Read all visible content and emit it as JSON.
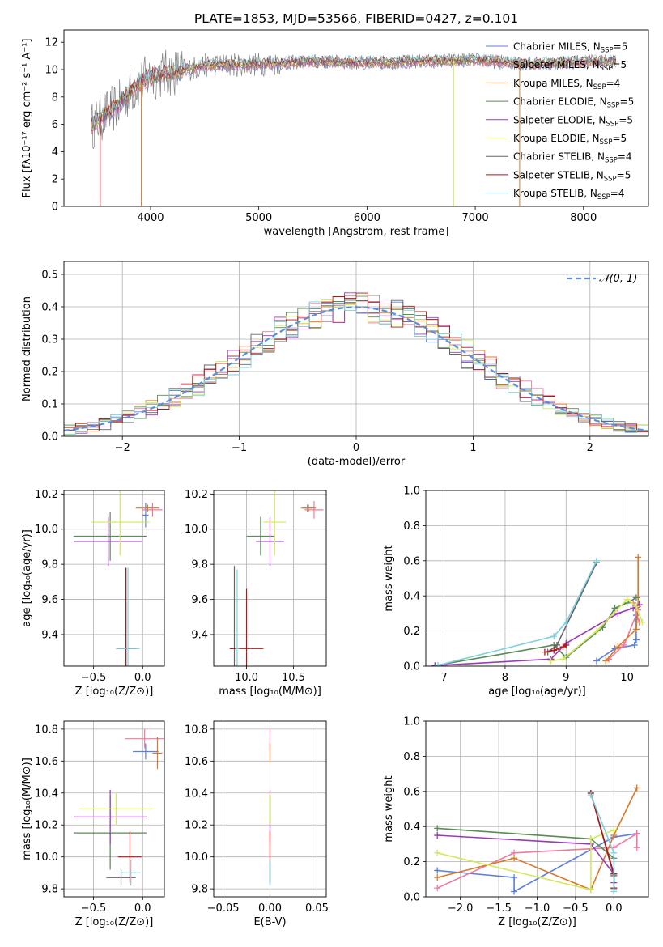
{
  "palette": [
    "#5b7fdc",
    "#f07a9c",
    "#d97a2a",
    "#5a8a55",
    "#9a3bb5",
    "#d2ea5a",
    "#666666",
    "#b01818",
    "#7ed0de"
  ],
  "grid_color": "#b0b0b0",
  "chart_data": [
    {
      "id": "spectrum",
      "type": "line",
      "title": "PLATE=1853, MJD=53566, FIBERID=0427, z=0.101",
      "xlabel": "wavelength [Angstrom, rest frame]",
      "ylabel": "Flux [fλ10⁻¹⁷ erg cm⁻² s⁻¹ A⁻¹]",
      "xlim": [
        3200,
        8600
      ],
      "ylim": [
        0,
        12.9
      ],
      "xticks": [
        4000,
        5000,
        6000,
        7000,
        8000
      ],
      "yticks": [
        0,
        2,
        4,
        6,
        8,
        10,
        12
      ],
      "grid": false,
      "legend_position": "right",
      "data_line": {
        "color": "#808080",
        "x_start": 3450,
        "x_end": 8300
      },
      "continuum": {
        "x": [
          3450,
          3500,
          3600,
          3700,
          3800,
          3900,
          4000,
          4200,
          4500,
          5000,
          5500,
          6000,
          6500,
          7000,
          7500,
          8000,
          8300
        ],
        "y": [
          5.8,
          6.2,
          6.8,
          7.4,
          8.3,
          9.0,
          9.5,
          9.8,
          10.3,
          10.4,
          10.6,
          10.5,
          10.6,
          10.7,
          10.4,
          10.6,
          10.6
        ]
      },
      "spikes": [
        {
          "x": 3535,
          "series": 7
        },
        {
          "x": 3915,
          "series": 2
        },
        {
          "x": 6800,
          "series": 5
        },
        {
          "x": 7410,
          "series": 2
        }
      ],
      "series": [
        {
          "name": "Chabrier MILES, N",
          "sub": "SSP",
          "tail": "=5"
        },
        {
          "name": "Salpeter MILES, N",
          "sub": "SSP",
          "tail": "=5"
        },
        {
          "name": "Kroupa MILES, N",
          "sub": "SSP",
          "tail": "=4"
        },
        {
          "name": "Chabrier ELODIE, N",
          "sub": "SSP",
          "tail": "=5"
        },
        {
          "name": "Salpeter ELODIE, N",
          "sub": "SSP",
          "tail": "=5"
        },
        {
          "name": "Kroupa ELODIE, N",
          "sub": "SSP",
          "tail": "=5"
        },
        {
          "name": "Chabrier STELIB, N",
          "sub": "SSP",
          "tail": "=4"
        },
        {
          "name": "Salpeter STELIB, N",
          "sub": "SSP",
          "tail": "=5"
        },
        {
          "name": "Kroupa STELIB, N",
          "sub": "SSP",
          "tail": "=4"
        }
      ]
    },
    {
      "id": "residuals",
      "type": "line",
      "xlabel": "(data-model)/error",
      "ylabel": "Normed distribution",
      "xlim": [
        -2.5,
        2.5
      ],
      "ylim": [
        0,
        0.54
      ],
      "xticks": [
        -2,
        -1,
        0,
        1,
        2
      ],
      "xtick_labels": [
        "−2",
        "−1",
        "0",
        "1",
        "2"
      ],
      "yticks": [
        0.0,
        0.1,
        0.2,
        0.3,
        0.4,
        0.5
      ],
      "ytick_labels": [
        "0.0",
        "0.1",
        "0.2",
        "0.3",
        "0.4",
        "0.5"
      ],
      "grid": true,
      "legend": "𝒩(0, 1)",
      "legend_position": "top-right",
      "reference_color": "#5b8fd6",
      "bin_width": 0.1
    },
    {
      "id": "age-vs-Z",
      "type": "scatter",
      "xlabel": "Z [log₁₀(Z/Z⊙)]",
      "ylabel": "age  [log₁₀(age/yr)]",
      "xlim": [
        -0.8,
        0.22
      ],
      "ylim": [
        9.22,
        10.22
      ],
      "xticks": [
        -0.5,
        0.0
      ],
      "xtick_labels": [
        "−0.5",
        "0.0"
      ],
      "yticks": [
        9.4,
        9.6,
        9.8,
        10.0,
        10.2
      ],
      "ytick_labels": [
        "9.4",
        "9.6",
        "9.8",
        "10.0",
        "10.2"
      ],
      "grid": true,
      "points": [
        {
          "s": 0,
          "x": 0.03,
          "y": 10.08,
          "xe": 0.03,
          "ye": 0.07
        },
        {
          "s": 1,
          "x": 0.1,
          "y": 10.11,
          "xe": 0.1,
          "ye": 0.04
        },
        {
          "s": 2,
          "x": 0.05,
          "y": 10.12,
          "xe": 0.12,
          "ye": 0.02
        },
        {
          "s": 3,
          "x": -0.33,
          "y": 9.96,
          "xe": 0.37,
          "ye": 0.14
        },
        {
          "s": 4,
          "x": -0.35,
          "y": 9.93,
          "xe": 0.35,
          "ye": 0.14
        },
        {
          "s": 5,
          "x": -0.23,
          "y": 10.04,
          "xe": 0.3,
          "ye": 0.19
        },
        {
          "s": 6,
          "x": -0.17,
          "y": 9.32,
          "xe": 0.1,
          "ye": 0.46
        },
        {
          "s": 7,
          "x": -0.17,
          "y": 9.32,
          "xe": 0.1,
          "ye": 0.46
        },
        {
          "s": 8,
          "x": -0.15,
          "y": 9.32,
          "xe": 0.12,
          "ye": 0.46
        }
      ]
    },
    {
      "id": "age-vs-mass",
      "type": "scatter",
      "xlabel": "mass [log₁₀(M/M⊙)]",
      "xlim": [
        9.65,
        10.85
      ],
      "ylim": [
        9.22,
        10.22
      ],
      "xticks": [
        10.0,
        10.5
      ],
      "xtick_labels": [
        "10.0",
        "10.5"
      ],
      "yticks": [
        9.4,
        9.6,
        9.8,
        10.0,
        10.2
      ],
      "ytick_labels": [
        "9.4",
        "9.6",
        "9.8",
        "10.0",
        "10.2"
      ],
      "grid": true,
      "points": [
        {
          "s": 0,
          "x": 10.65,
          "y": 10.12,
          "xe": 0.05,
          "ye": 0.02
        },
        {
          "s": 1,
          "x": 10.72,
          "y": 10.11,
          "xe": 0.1,
          "ye": 0.05
        },
        {
          "s": 2,
          "x": 10.66,
          "y": 10.12,
          "xe": 0.08,
          "ye": 0.02
        },
        {
          "s": 3,
          "x": 10.15,
          "y": 9.96,
          "xe": 0.15,
          "ye": 0.11
        },
        {
          "s": 4,
          "x": 10.25,
          "y": 9.93,
          "xe": 0.15,
          "ye": 0.14
        },
        {
          "s": 5,
          "x": 10.3,
          "y": 10.04,
          "xe": 0.12,
          "ye": 0.19
        },
        {
          "s": 6,
          "x": 9.87,
          "y": 9.32,
          "xe": 0.05,
          "ye": 0.47
        },
        {
          "s": 7,
          "x": 10.0,
          "y": 9.32,
          "xe": 0.18,
          "ye": 0.34
        },
        {
          "s": 8,
          "x": 9.9,
          "y": 9.32,
          "xe": 0.02,
          "ye": 0.45
        }
      ]
    },
    {
      "id": "weight-vs-age",
      "type": "line",
      "xlabel": "age  [log₁₀(age/yr)]",
      "ylabel": "mass weight",
      "xlim": [
        6.7,
        10.35
      ],
      "ylim": [
        0,
        1.0
      ],
      "xticks": [
        7,
        8,
        9,
        10
      ],
      "xtick_labels": [
        "7",
        "8",
        "9",
        "10"
      ],
      "yticks": [
        0,
        0.2,
        0.4,
        0.6,
        0.8,
        1.0
      ],
      "ytick_labels": [
        "0.0",
        "0.2",
        "0.4",
        "0.6",
        "0.8",
        "1.0"
      ],
      "grid": true,
      "series": [
        {
          "s": 0,
          "x": [
            9.5,
            9.8,
            10.12,
            10.15,
            10.15
          ],
          "y": [
            0.03,
            0.1,
            0.12,
            0.15,
            0.29
          ]
        },
        {
          "s": 1,
          "x": [
            9.7,
            9.95,
            10.18,
            10.1,
            10.2
          ],
          "y": [
            0.04,
            0.12,
            0.32,
            0.36,
            0.25
          ]
        },
        {
          "s": 2,
          "x": [
            9.65,
            9.85,
            10.15,
            10.18,
            10.18
          ],
          "y": [
            0.03,
            0.11,
            0.21,
            0.34,
            0.62
          ]
        },
        {
          "s": 3,
          "x": [
            6.85,
            8.8,
            9.0,
            9.6,
            9.8,
            10.0,
            10.15
          ],
          "y": [
            0.003,
            0.12,
            0.05,
            0.22,
            0.33,
            0.36,
            0.39
          ]
        },
        {
          "s": 4,
          "x": [
            6.85,
            8.75,
            9.0,
            9.85,
            10.1,
            10.2
          ],
          "y": [
            0.003,
            0.04,
            0.13,
            0.3,
            0.33,
            0.35
          ]
        },
        {
          "s": 5,
          "x": [
            8.75,
            8.95,
            9.5,
            10.0,
            10.15,
            10.25
          ],
          "y": [
            0.03,
            0.04,
            0.2,
            0.38,
            0.34,
            0.25
          ]
        },
        {
          "s": 6,
          "x": [
            8.7,
            8.85,
            9.5
          ],
          "y": [
            0.08,
            0.12,
            0.59
          ]
        },
        {
          "s": 7,
          "x": [
            8.65,
            8.8,
            8.95,
            9.0
          ],
          "y": [
            0.08,
            0.09,
            0.11,
            0.12
          ]
        },
        {
          "s": 8,
          "x": [
            6.9,
            8.8,
            9.0,
            9.5
          ],
          "y": [
            0.005,
            0.17,
            0.25,
            0.6
          ]
        }
      ]
    },
    {
      "id": "mass-vs-Z",
      "type": "scatter",
      "xlabel": "Z [log₁₀(Z/Z⊙)]",
      "ylabel": "mass [log₁₀(M/M⊙)]",
      "xlim": [
        -0.8,
        0.22
      ],
      "ylim": [
        9.75,
        10.85
      ],
      "xticks": [
        -0.5,
        0.0
      ],
      "xtick_labels": [
        "−0.5",
        "0.0"
      ],
      "yticks": [
        9.8,
        10.0,
        10.2,
        10.4,
        10.6,
        10.8
      ],
      "ytick_labels": [
        "9.8",
        "10.0",
        "10.2",
        "10.4",
        "10.6",
        "10.8"
      ],
      "grid": true,
      "points": [
        {
          "s": 0,
          "x": 0.03,
          "y": 10.66,
          "xe": 0.13,
          "ye": 0.05
        },
        {
          "s": 1,
          "x": 0.02,
          "y": 10.74,
          "xe": 0.2,
          "ye": 0.06
        },
        {
          "s": 2,
          "x": 0.15,
          "y": 10.65,
          "xe": 0.05,
          "ye": 0.1
        },
        {
          "s": 3,
          "x": -0.33,
          "y": 10.15,
          "xe": 0.37,
          "ye": 0.23
        },
        {
          "s": 4,
          "x": -0.33,
          "y": 10.25,
          "xe": 0.37,
          "ye": 0.17
        },
        {
          "s": 5,
          "x": -0.27,
          "y": 10.3,
          "xe": 0.37,
          "ye": 0.1
        },
        {
          "s": 6,
          "x": -0.22,
          "y": 9.87,
          "xe": 0.15,
          "ye": 0.05
        },
        {
          "s": 7,
          "x": -0.13,
          "y": 10.0,
          "xe": 0.12,
          "ye": 0.16
        },
        {
          "s": 8,
          "x": -0.12,
          "y": 9.9,
          "xe": 0.1,
          "ye": 0.08
        }
      ]
    },
    {
      "id": "mass-vs-ebv",
      "type": "scatter",
      "xlabel": "E(B-V)",
      "xlim": [
        -0.06,
        0.06
      ],
      "ylim": [
        9.75,
        10.85
      ],
      "xticks": [
        -0.05,
        0.0,
        0.05
      ],
      "xtick_labels": [
        "−0.05",
        "0.00",
        "0.05"
      ],
      "yticks": [
        9.8,
        10.0,
        10.2,
        10.4,
        10.6,
        10.8
      ],
      "ytick_labels": [
        "9.8",
        "10.0",
        "10.2",
        "10.4",
        "10.6",
        "10.8"
      ],
      "grid": true,
      "points": [
        {
          "s": 0,
          "x": 0,
          "y": 10.66,
          "xe": 0,
          "ye": 0.05
        },
        {
          "s": 1,
          "x": 0,
          "y": 10.74,
          "xe": 0,
          "ye": 0.06
        },
        {
          "s": 2,
          "x": 0,
          "y": 10.65,
          "xe": 0,
          "ye": 0.06
        },
        {
          "s": 3,
          "x": 0,
          "y": 10.15,
          "xe": 0,
          "ye": 0.23
        },
        {
          "s": 4,
          "x": 0,
          "y": 10.25,
          "xe": 0,
          "ye": 0.17
        },
        {
          "s": 5,
          "x": 0,
          "y": 10.3,
          "xe": 0,
          "ye": 0.1
        },
        {
          "s": 6,
          "x": 0,
          "y": 9.87,
          "xe": 0,
          "ye": 0.05
        },
        {
          "s": 7,
          "x": 0,
          "y": 10.0,
          "xe": 0,
          "ye": 0.16
        },
        {
          "s": 8,
          "x": 0,
          "y": 9.9,
          "xe": 0,
          "ye": 0.08
        }
      ]
    },
    {
      "id": "weight-vs-Z",
      "type": "line",
      "xlabel": "Z [log₁₀(Z/Z⊙)]",
      "ylabel": "mass weight",
      "xlim": [
        -2.45,
        0.45
      ],
      "ylim": [
        0,
        1.0
      ],
      "xticks": [
        -2.0,
        -1.5,
        -1.0,
        -0.5,
        0.0
      ],
      "xtick_labels": [
        "−2.0",
        "−1.5",
        "−1.0",
        "−0.5",
        "0.0"
      ],
      "yticks": [
        0,
        0.2,
        0.4,
        0.6,
        0.8,
        1.0
      ],
      "ytick_labels": [
        "0.0",
        "0.2",
        "0.4",
        "0.6",
        "0.8",
        "1.0"
      ],
      "grid": true,
      "series": [
        {
          "s": 0,
          "x": [
            -2.3,
            -1.3,
            -1.3,
            0.0,
            0.3
          ],
          "y": [
            0.15,
            0.11,
            0.03,
            0.34,
            0.36
          ]
        },
        {
          "s": 1,
          "x": [
            -2.3,
            -1.3,
            0.0,
            0.3,
            0.3
          ],
          "y": [
            0.05,
            0.25,
            0.28,
            0.36,
            0.28
          ]
        },
        {
          "s": 2,
          "x": [
            -2.3,
            -1.3,
            -0.3,
            0.0,
            0.3
          ],
          "y": [
            0.11,
            0.22,
            0.04,
            0.35,
            0.62
          ]
        },
        {
          "s": 3,
          "x": [
            -2.3,
            -0.3,
            0.0,
            0.0
          ],
          "y": [
            0.39,
            0.33,
            0.22,
            0.05
          ]
        },
        {
          "s": 4,
          "x": [
            -2.3,
            -0.3,
            0.0,
            0.0
          ],
          "y": [
            0.35,
            0.3,
            0.13,
            0.08
          ]
        },
        {
          "s": 5,
          "x": [
            -2.3,
            -0.3,
            -0.3,
            0.0
          ],
          "y": [
            0.25,
            0.04,
            0.33,
            0.38
          ]
        },
        {
          "s": 6,
          "x": [
            -0.3,
            0.0,
            0.0
          ],
          "y": [
            0.59,
            0.12,
            0.04
          ]
        },
        {
          "s": 7,
          "x": [
            -0.3,
            0.0,
            0.0
          ],
          "y": [
            0.59,
            0.13,
            0.05
          ]
        },
        {
          "s": 8,
          "x": [
            -0.3,
            0.0,
            0.0
          ],
          "y": [
            0.58,
            0.25,
            0.03
          ]
        }
      ]
    }
  ]
}
